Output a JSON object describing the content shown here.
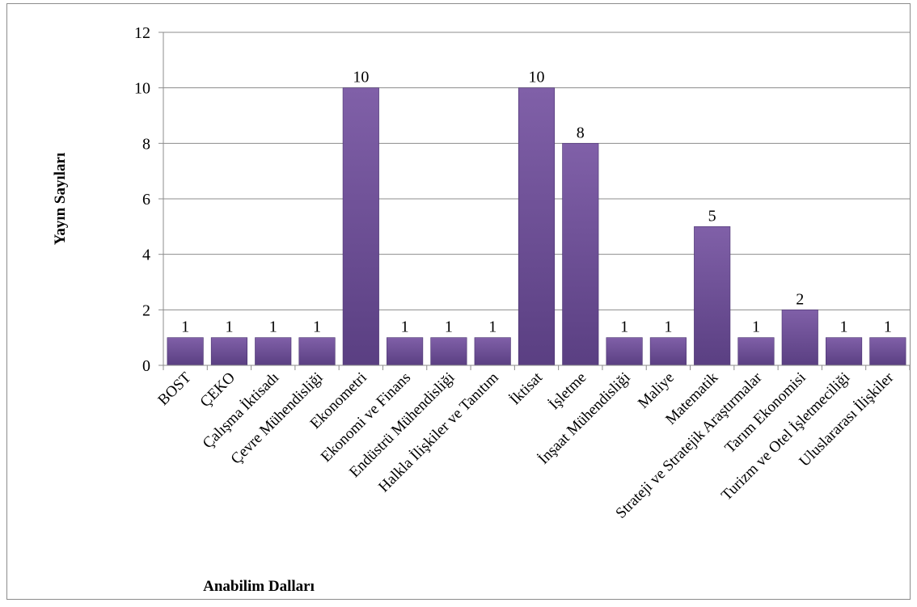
{
  "chart_data": {
    "type": "bar",
    "title": "",
    "xlabel": "Anabilim Dalları",
    "ylabel": "Yayın Sayıları",
    "ylim": [
      0,
      12
    ],
    "yticks": [
      0,
      2,
      4,
      6,
      8,
      10,
      12
    ],
    "grid": true,
    "legend": "none",
    "categories": [
      "BOST",
      "ÇEKO",
      "Çalışma İktisadı",
      "Çevre Mühendisliği",
      "Ekonometri",
      "Ekonomi ve Finans",
      "Endüstrü Mühendisliği",
      "Halkla İlişkiler ve Tanıtım",
      "İktisat",
      "İşletme",
      "İnşaat Mühendisliği",
      "Maliye",
      "Matematik",
      "Strateji ve Stratejik Araştırmalar",
      "Tarım Ekonomisi",
      "Turizm ve Otel İşletmeciliği",
      "Uluslararası İlişkiler"
    ],
    "values": [
      1,
      1,
      1,
      1,
      10,
      1,
      1,
      1,
      10,
      8,
      1,
      1,
      5,
      1,
      2,
      1,
      1
    ],
    "data_labels": [
      "1",
      "1",
      "1",
      "1",
      "10",
      "1",
      "1",
      "1",
      "10",
      "8",
      "1",
      "1",
      "5",
      "1",
      "2",
      "1",
      "1"
    ],
    "colors": {
      "bar_top": "#8060a8",
      "bar_bottom": "#5a3f82",
      "bar_edge": "#4a3370",
      "grid": "#8c8c8c",
      "axis": "#8c8c8c"
    }
  }
}
